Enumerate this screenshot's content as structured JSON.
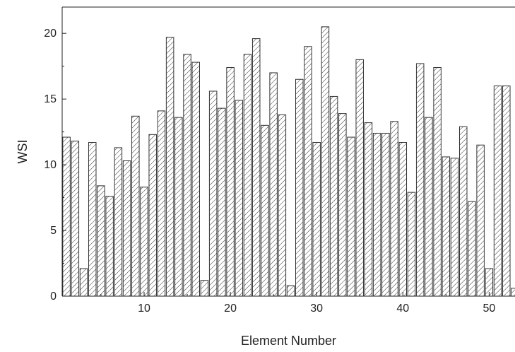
{
  "chart_data": {
    "type": "bar",
    "title": "",
    "xlabel": "Element Number",
    "ylabel": "WSI",
    "xlim": [
      0.5,
      53
    ],
    "ylim": [
      0,
      22
    ],
    "x_ticks": [
      10,
      20,
      30,
      40,
      50
    ],
    "y_ticks": [
      0,
      5,
      10,
      15,
      20
    ],
    "grid": false,
    "legend": "none",
    "bar_fill": "hatched",
    "colors": {
      "bar_stroke": "#333333",
      "hatch": "#333333",
      "axis": "#222222",
      "text": "#222222"
    },
    "x": [
      1,
      2,
      3,
      4,
      5,
      6,
      7,
      8,
      9,
      10,
      11,
      12,
      13,
      14,
      15,
      16,
      17,
      18,
      19,
      20,
      21,
      22,
      23,
      24,
      25,
      26,
      27,
      28,
      29,
      30,
      31,
      32,
      33,
      34,
      35,
      36,
      37,
      38,
      39,
      40,
      41,
      42,
      43,
      44,
      45,
      46,
      47,
      48,
      49,
      50,
      51,
      52,
      53
    ],
    "values": [
      12.1,
      11.8,
      2.1,
      11.7,
      8.4,
      7.6,
      11.3,
      10.3,
      13.7,
      8.3,
      12.3,
      14.1,
      19.7,
      13.6,
      18.4,
      17.8,
      1.2,
      15.6,
      14.3,
      17.4,
      14.9,
      18.4,
      19.6,
      13.0,
      17.0,
      13.8,
      0.8,
      16.5,
      19.0,
      11.7,
      20.5,
      15.2,
      13.9,
      12.1,
      18.0,
      13.2,
      12.4,
      12.4,
      13.3,
      11.7,
      7.9,
      17.7,
      13.6,
      17.4,
      10.6,
      10.5,
      12.9,
      7.2,
      11.5,
      2.1,
      16.0,
      16.0,
      0.6
    ]
  }
}
